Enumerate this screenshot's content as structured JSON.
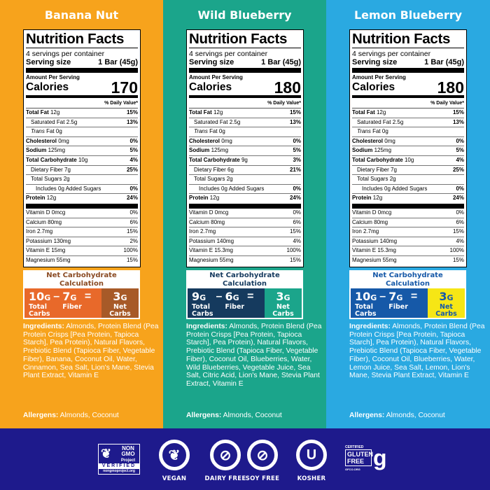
{
  "panels": [
    {
      "name": "Banana Nut",
      "bg": "#f7a31c",
      "calories": "170",
      "net_head_color": "#8a4a22",
      "left_color": "#e8692a",
      "right_color": "#a75a28",
      "right_text": "#ffffff",
      "nutrients": [
        [
          "Total Fat",
          "12g",
          "15%"
        ],
        [
          "Saturated Fat",
          "2.5g",
          "13%"
        ],
        [
          "Trans",
          "Fat 0g",
          ""
        ],
        [
          "Cholesterol",
          "0mg",
          "0%"
        ],
        [
          "Sodium",
          "125mg",
          "5%"
        ],
        [
          "Total Carbohydrate",
          "10g",
          "4%"
        ],
        [
          "Dietary Fiber",
          "7g",
          "25%"
        ],
        [
          "Total Sugars",
          "2g",
          ""
        ],
        [
          "Includes 0g Added Sugars",
          "",
          "0%"
        ],
        [
          "Protein",
          "12g",
          "24%"
        ]
      ],
      "vitamins": [
        [
          "Vitamin D 0mcg",
          "0%"
        ],
        [
          "Calcium 80mg",
          "6%"
        ],
        [
          "Iron 2.7mg",
          "15%"
        ],
        [
          "Potassium 130mg",
          "2%"
        ],
        [
          "Vitamin E 15mg",
          "100%"
        ],
        [
          "Magnesium 55mg",
          "15%"
        ]
      ],
      "net": {
        "total": "10",
        "fiber": "7",
        "net": "3"
      },
      "ingredients": "Almonds, Protein Blend (Pea Protein Crisps [Pea Protein, Tapioca Starch], Pea Protein), Natural Flavors, Prebiotic Blend (Tapioca Fiber, Vegetable Fiber), Banana, Coconut Oil, Water, Cinnamon, Sea Salt, Lion's Mane, Stevia Plant Extract, Vitamin E",
      "allergens": "Almonds, Coconut"
    },
    {
      "name": "Wild Blueberry",
      "bg": "#1ba58b",
      "calories": "180",
      "net_head_color": "#153a5e",
      "left_color": "#153a5e",
      "right_color": "#1ba58b",
      "right_text": "#ffffff",
      "nutrients": [
        [
          "Total Fat",
          "12g",
          "15%"
        ],
        [
          "Saturated Fat",
          "2.5g",
          "13%"
        ],
        [
          "Trans",
          "Fat 0g",
          ""
        ],
        [
          "Cholesterol",
          "0mg",
          "0%"
        ],
        [
          "Sodium",
          "125mg",
          "5%"
        ],
        [
          "Total Carbohydrate",
          "9g",
          "3%"
        ],
        [
          "Dietary Fiber",
          "6g",
          "21%"
        ],
        [
          "Total Sugars",
          "2g",
          ""
        ],
        [
          "Includes 0g Added Sugars",
          "",
          "0%"
        ],
        [
          "Protein",
          "12g",
          "24%"
        ]
      ],
      "vitamins": [
        [
          "Vitamin D 0mcg",
          "0%"
        ],
        [
          "Calcium 80mg",
          "6%"
        ],
        [
          "Iron 2.7mg",
          "15%"
        ],
        [
          "Potassium 140mg",
          "4%"
        ],
        [
          "Vitamin E 15.3mg",
          "100%"
        ],
        [
          "Magnesium 55mg",
          "15%"
        ]
      ],
      "net": {
        "total": "9",
        "fiber": "6",
        "net": "3"
      },
      "ingredients": "Almonds, Protein Blend (Pea Protein Crisps [Pea Protein, Tapioca Starch], Pea Protein), Natural Flavors, Prebiotic Blend (Tapioca Fiber, Vegetable Fiber), Coconut Oil, Blueberries, Water, Wild Blueberries, Vegetable Juice, Sea Salt, Citric Acid, Lion's Mane, Stevia Plant Extract, Vitamin E",
      "allergens": "Almonds, Coconut"
    },
    {
      "name": "Lemon Blueberry",
      "bg": "#2aa9e1",
      "calories": "180",
      "net_head_color": "#1659a8",
      "left_color": "#1659a8",
      "right_color": "#f6e615",
      "right_text": "#1659a8",
      "nutrients": [
        [
          "Total Fat",
          "12g",
          "15%"
        ],
        [
          "Saturated Fat",
          "2.5g",
          "13%"
        ],
        [
          "Trans",
          "Fat 0g",
          ""
        ],
        [
          "Cholesterol",
          "0mg",
          "0%"
        ],
        [
          "Sodium",
          "125mg",
          "5%"
        ],
        [
          "Total Carbohydrate",
          "10g",
          "4%"
        ],
        [
          "Dietary Fiber",
          "7g",
          "25%"
        ],
        [
          "Total Sugars",
          "2g",
          ""
        ],
        [
          "Includes 0g Added Sugars",
          "",
          "0%"
        ],
        [
          "Protein",
          "12g",
          "24%"
        ]
      ],
      "vitamins": [
        [
          "Vitamin D 0mcg",
          "0%"
        ],
        [
          "Calcium 80mg",
          "6%"
        ],
        [
          "Iron 2.7mg",
          "15%"
        ],
        [
          "Potassium 140mg",
          "4%"
        ],
        [
          "Vitamin E 15.3mg",
          "100%"
        ],
        [
          "Magnesium 55mg",
          "15%"
        ]
      ],
      "net": {
        "total": "10",
        "fiber": "7",
        "net": "3"
      },
      "ingredients": "Almonds, Protein Blend (Pea Protein Crisps [Pea Protein, Tapioca Starch], Pea Protein), Natural Flavors, Prebiotic Blend (Tapioca Fiber, Vegetable Fiber), Coconut Oil, Blueberries, Water, Lemon Juice, Sea Salt, Lemon, Lion's Mane, Stevia Plant Extract, Vitamin E",
      "allergens": "Almonds, Coconut"
    }
  ],
  "label": {
    "title": "Nutrition Facts",
    "servings": "4 servings per container",
    "serving_size_label": "Serving size",
    "serving_size": "1 Bar (45g)",
    "amount_per_serving": "Amount Per Serving",
    "calories_label": "Calories",
    "daily_value": "% Daily Value*"
  },
  "net_calc": {
    "title": "Net Carbohydrate Calculation",
    "unit": "G",
    "minus": "–",
    "equals": "=",
    "total_label_1": "Total",
    "total_label_2": "Carbs",
    "fiber_label": "Fiber",
    "net_label_1": "Net",
    "net_label_2": "Carbs"
  },
  "ingredients_label": "Ingredients:",
  "allergens_label": "Allergens:",
  "footer": {
    "nongmo": {
      "line1": "NON",
      "line2": "GMO",
      "line3": "Project",
      "line4": "VERIFIED",
      "line5": "nongmoproject.org"
    },
    "badges": [
      {
        "label": "VEGAN",
        "icon": "leaf-icon"
      },
      {
        "label": "DAIRY FREE",
        "icon": "no-milk-icon"
      },
      {
        "label": "SOY FREE",
        "icon": "no-soy-icon"
      },
      {
        "label": "KOSHER",
        "icon": "kosher-u-icon",
        "glyph": "U"
      }
    ],
    "gluten": {
      "line1": "CERTIFIED",
      "line2": "GLUTEN",
      "line3": "FREE",
      "line4": "GFCO.ORG"
    }
  }
}
